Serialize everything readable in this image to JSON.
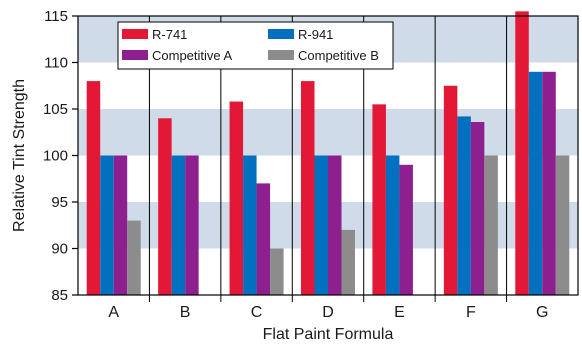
{
  "chart_data": {
    "type": "bar",
    "xlabel": "Flat Paint Formula",
    "ylabel": "Relative Tint Strength",
    "ylim": [
      85,
      115
    ],
    "yticks": [
      85,
      90,
      95,
      100,
      105,
      110,
      115
    ],
    "grid": "alternating horizontal bands",
    "legend_position": "top-left",
    "categories": [
      "A",
      "B",
      "C",
      "D",
      "E",
      "F",
      "G"
    ],
    "series": [
      {
        "name": "R-741",
        "color": "#e31837",
        "values": [
          108,
          104,
          105.8,
          108,
          105.5,
          107.5,
          115.5
        ]
      },
      {
        "name": "R-941",
        "color": "#0070bf",
        "values": [
          100,
          100,
          100,
          100,
          100,
          104.2,
          109
        ]
      },
      {
        "name": "Competitive A",
        "color": "#8e1f8f",
        "values": [
          100,
          100,
          97,
          100,
          99,
          103.6,
          109
        ]
      },
      {
        "name": "Competitive B",
        "color": "#8c8c8c",
        "values": [
          93,
          null,
          90,
          92,
          null,
          100,
          100
        ]
      }
    ],
    "colors": {
      "band": "#cfdbe9",
      "plot_background": "#ffffff"
    }
  }
}
